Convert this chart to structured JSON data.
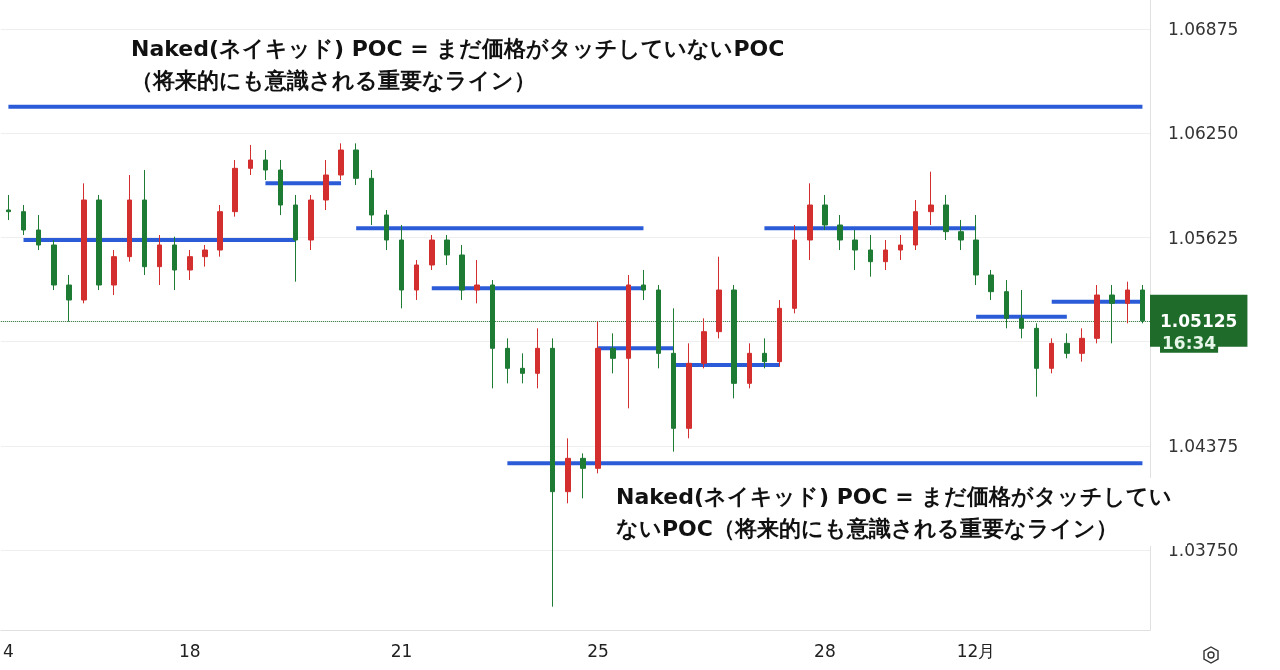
{
  "chart_data": {
    "type": "candlestick",
    "categories": [
      "4",
      null,
      null,
      null,
      null,
      null,
      null,
      null,
      null,
      null,
      null,
      null,
      "18",
      null,
      null,
      null,
      null,
      null,
      null,
      null,
      null,
      null,
      null,
      null,
      null,
      null,
      "21",
      null,
      null,
      null,
      null,
      null,
      null,
      null,
      null,
      null,
      null,
      null,
      null,
      "25",
      null,
      null,
      null,
      null,
      null,
      null,
      null,
      null,
      null,
      null,
      null,
      null,
      null,
      null,
      "28",
      null,
      null,
      null,
      null,
      null,
      null,
      null,
      null,
      null,
      "12月",
      null,
      null,
      null,
      null,
      null,
      null,
      null,
      null,
      null,
      null,
      null
    ],
    "ohlc": [
      [
        1.0579,
        1.0588,
        1.0573,
        1.0578
      ],
      [
        1.0578,
        1.0582,
        1.0564,
        1.0567
      ],
      [
        1.0567,
        1.0576,
        1.0555,
        1.0558
      ],
      [
        1.0558,
        1.0561,
        1.0531,
        1.0534
      ],
      [
        1.0534,
        1.054,
        1.0512,
        1.0525
      ],
      [
        1.0525,
        1.0595,
        1.0523,
        1.0585
      ],
      [
        1.0585,
        1.0588,
        1.0531,
        1.0534
      ],
      [
        1.0534,
        1.0555,
        1.0528,
        1.0551
      ],
      [
        1.0551,
        1.06,
        1.0548,
        1.0585
      ],
      [
        1.0585,
        1.0603,
        1.054,
        1.0545
      ],
      [
        1.0545,
        1.0564,
        1.0534,
        1.0558
      ],
      [
        1.0558,
        1.0563,
        1.0531,
        1.0543
      ],
      [
        1.0543,
        1.0555,
        1.0537,
        1.0551
      ],
      [
        1.0551,
        1.0558,
        1.0545,
        1.0555
      ],
      [
        1.0555,
        1.0582,
        1.0551,
        1.0578
      ],
      [
        1.0578,
        1.0609,
        1.0575,
        1.0604
      ],
      [
        1.0604,
        1.0618,
        1.06,
        1.0609
      ],
      [
        1.0609,
        1.0615,
        1.0597,
        1.0603
      ],
      [
        1.0603,
        1.0609,
        1.0576,
        1.0582
      ],
      [
        1.0582,
        1.0588,
        1.0536,
        1.0561
      ],
      [
        1.0561,
        1.0588,
        1.0555,
        1.0585
      ],
      [
        1.0585,
        1.0609,
        1.0579,
        1.06
      ],
      [
        1.06,
        1.0619,
        1.0597,
        1.0615
      ],
      [
        1.0615,
        1.0619,
        1.0594,
        1.0598
      ],
      [
        1.0598,
        1.0603,
        1.057,
        1.0576
      ],
      [
        1.0576,
        1.0579,
        1.0555,
        1.0561
      ],
      [
        1.0561,
        1.057,
        1.052,
        1.0531
      ],
      [
        1.0531,
        1.0549,
        1.0525,
        1.0546
      ],
      [
        1.0546,
        1.0564,
        1.0543,
        1.0561
      ],
      [
        1.0561,
        1.0564,
        1.0546,
        1.0552
      ],
      [
        1.0552,
        1.0558,
        1.0525,
        1.0531
      ],
      [
        1.0531,
        1.0549,
        1.0523,
        1.0534
      ],
      [
        1.0534,
        1.0537,
        1.0472,
        1.0496
      ],
      [
        1.0496,
        1.0502,
        1.0475,
        1.0484
      ],
      [
        1.0484,
        1.0493,
        1.0475,
        1.0481
      ],
      [
        1.0481,
        1.0508,
        1.0472,
        1.0496
      ],
      [
        1.0496,
        1.0502,
        1.0341,
        1.041
      ],
      [
        1.041,
        1.0442,
        1.0403,
        1.043
      ],
      [
        1.043,
        1.0433,
        1.0406,
        1.0424
      ],
      [
        1.0424,
        1.0512,
        1.0421,
        1.0496
      ],
      [
        1.0496,
        1.0505,
        1.0481,
        1.049
      ],
      [
        1.049,
        1.054,
        1.046,
        1.0534
      ],
      [
        1.0534,
        1.0543,
        1.0525,
        1.0531
      ],
      [
        1.0531,
        1.0534,
        1.0484,
        1.0493
      ],
      [
        1.0493,
        1.052,
        1.0434,
        1.0448
      ],
      [
        1.0448,
        1.0499,
        1.0442,
        1.0487
      ],
      [
        1.0487,
        1.0514,
        1.0484,
        1.0506
      ],
      [
        1.0506,
        1.0551,
        1.0502,
        1.0531
      ],
      [
        1.0531,
        1.0534,
        1.0466,
        1.0475
      ],
      [
        1.0475,
        1.0499,
        1.0472,
        1.0493
      ],
      [
        1.0493,
        1.0502,
        1.0484,
        1.0488
      ],
      [
        1.0488,
        1.0525,
        1.0485,
        1.052
      ],
      [
        1.052,
        1.057,
        1.0517,
        1.0561
      ],
      [
        1.0561,
        1.0595,
        1.0549,
        1.0582
      ],
      [
        1.0582,
        1.0588,
        1.0567,
        1.057
      ],
      [
        1.057,
        1.0576,
        1.0555,
        1.0561
      ],
      [
        1.0561,
        1.0567,
        1.0543,
        1.0555
      ],
      [
        1.0555,
        1.0564,
        1.0539,
        1.0548
      ],
      [
        1.0548,
        1.0561,
        1.0543,
        1.0555
      ],
      [
        1.0555,
        1.0564,
        1.0549,
        1.0558
      ],
      [
        1.0558,
        1.0585,
        1.0555,
        1.0578
      ],
      [
        1.0578,
        1.0602,
        1.057,
        1.0582
      ],
      [
        1.0582,
        1.0588,
        1.0561,
        1.0566
      ],
      [
        1.0566,
        1.0573,
        1.0555,
        1.0561
      ],
      [
        1.0561,
        1.0576,
        1.0534,
        1.054
      ],
      [
        1.054,
        1.0543,
        1.0525,
        1.053
      ],
      [
        1.053,
        1.0537,
        1.0508,
        1.0514
      ],
      [
        1.0514,
        1.0531,
        1.0502,
        1.0508
      ],
      [
        1.0508,
        1.0511,
        1.0467,
        1.0484
      ],
      [
        1.0484,
        1.0502,
        1.0481,
        1.0499
      ],
      [
        1.0499,
        1.0505,
        1.049,
        1.0493
      ],
      [
        1.0493,
        1.0508,
        1.0488,
        1.0502
      ],
      [
        1.0502,
        1.0534,
        1.0499,
        1.0528
      ],
      [
        1.0528,
        1.0534,
        1.0499,
        1.0523
      ],
      [
        1.0523,
        1.0536,
        1.0511,
        1.0531
      ],
      [
        1.0531,
        1.0534,
        1.0511,
        1.05125
      ]
    ],
    "colors": [
      "#1e7b34",
      "#1e7b34",
      "#1e7b34",
      "#1e7b34",
      "#1e7b34",
      "#d32f2f",
      "#1e7b34",
      "#d32f2f",
      "#d32f2f",
      "#1e7b34",
      "#d32f2f",
      "#1e7b34",
      "#d32f2f",
      "#d32f2f",
      "#d32f2f",
      "#d32f2f",
      "#d32f2f",
      "#1e7b34",
      "#1e7b34",
      "#1e7b34",
      "#d32f2f",
      "#d32f2f",
      "#d32f2f",
      "#1e7b34",
      "#1e7b34",
      "#1e7b34",
      "#1e7b34",
      "#d32f2f",
      "#d32f2f",
      "#1e7b34",
      "#1e7b34",
      "#d32f2f",
      "#1e7b34",
      "#1e7b34",
      "#1e7b34",
      "#d32f2f",
      "#1e7b34",
      "#d32f2f",
      "#1e7b34",
      "#d32f2f",
      "#1e7b34",
      "#d32f2f",
      "#1e7b34",
      "#1e7b34",
      "#1e7b34",
      "#d32f2f",
      "#d32f2f",
      "#d32f2f",
      "#1e7b34",
      "#d32f2f",
      "#1e7b34",
      "#d32f2f",
      "#d32f2f",
      "#d32f2f",
      "#1e7b34",
      "#1e7b34",
      "#1e7b34",
      "#1e7b34",
      "#d32f2f",
      "#d32f2f",
      "#d32f2f",
      "#d32f2f",
      "#1e7b34",
      "#1e7b34",
      "#1e7b34",
      "#1e7b34",
      "#1e7b34",
      "#1e7b34",
      "#1e7b34",
      "#d32f2f",
      "#1e7b34",
      "#d32f2f",
      "#d32f2f",
      "#1e7b34",
      "#d32f2f",
      "#1e7b34"
    ],
    "series": [
      {
        "type": "line",
        "color": "#2b5bd7",
        "values": [
          1.0641,
          1.0641,
          1.0641,
          1.0641,
          1.0641,
          1.0641,
          1.0641,
          1.0641,
          1.0641,
          1.0641,
          1.0641,
          1.0641,
          1.0641,
          1.0641,
          1.0641,
          1.0641,
          1.0641,
          1.0641,
          1.0641,
          1.0641,
          1.0641,
          1.0641,
          1.0641,
          1.0641,
          1.0641,
          1.0641,
          1.0641,
          1.0641,
          1.0641,
          1.0641,
          1.0641,
          1.0641,
          1.0641,
          1.0641,
          1.0641,
          1.0641,
          1.0641,
          1.0641,
          1.0641,
          1.0641,
          1.0641,
          1.0641,
          1.0641,
          1.0641,
          1.0641,
          1.0641,
          1.0641,
          1.0641,
          1.0641,
          1.0641,
          1.0641,
          1.0641,
          1.0641,
          1.0641,
          1.0641,
          1.0641,
          1.0641,
          1.0641,
          1.0641,
          1.0641,
          1.0641,
          1.0641,
          1.0641,
          1.0641,
          1.0641,
          1.0641,
          1.0641,
          1.0641,
          1.0641,
          1.0641,
          1.0641,
          1.0641,
          1.0641,
          1.0641,
          1.0641,
          1.0641
        ]
      },
      {
        "type": "line",
        "color": "#2b5bd7",
        "values": [
          null,
          null,
          null,
          null,
          null,
          null,
          null,
          null,
          null,
          null,
          null,
          null,
          null,
          null,
          null,
          null,
          null,
          null,
          null,
          null,
          null,
          null,
          null,
          null,
          null,
          null,
          null,
          null,
          null,
          null,
          null,
          null,
          null,
          1.0427,
          1.0427,
          1.0427,
          1.0427,
          1.0427,
          1.0427,
          1.0427,
          1.0427,
          1.0427,
          1.0427,
          1.0427,
          1.0427,
          1.0427,
          1.0427,
          1.0427,
          1.0427,
          1.0427,
          1.0427,
          1.0427,
          1.0427,
          1.0427,
          1.0427,
          1.0427,
          1.0427,
          1.0427,
          1.0427,
          1.0427,
          1.0427,
          1.0427,
          1.0427,
          1.0427,
          1.0427,
          1.0427,
          1.0427,
          1.0427,
          1.0427,
          1.0427,
          1.0427,
          1.0427,
          1.0427,
          1.0427,
          1.0427,
          1.0427
        ]
      },
      {
        "type": "line",
        "color": "#2b5bd7",
        "values": [
          null,
          1.0561,
          1.0561,
          1.0561,
          1.0561,
          1.0561,
          1.0561,
          1.0561,
          1.0561,
          1.0561,
          1.0561,
          1.0561,
          1.0561,
          1.0561,
          1.0561,
          1.0561,
          1.0561,
          1.0561,
          1.0561,
          1.0561,
          null,
          null,
          null,
          null,
          null,
          null,
          null,
          null,
          null,
          null,
          null,
          null,
          null,
          null,
          null,
          null,
          null,
          null,
          null,
          null,
          null,
          null,
          null,
          null,
          null,
          null,
          null,
          null,
          null,
          null,
          null,
          null,
          null,
          null,
          null,
          null,
          null,
          null,
          null,
          null,
          null,
          null,
          null,
          null,
          null,
          null,
          null,
          null,
          null,
          null,
          null,
          null,
          null,
          null,
          null,
          null
        ]
      },
      {
        "type": "line",
        "color": "#2b5bd7",
        "values": [
          null,
          null,
          null,
          null,
          null,
          null,
          null,
          null,
          null,
          null,
          null,
          null,
          null,
          null,
          null,
          null,
          null,
          1.0595,
          1.0595,
          1.0595,
          1.0595,
          1.0595,
          1.0595,
          null,
          null,
          null,
          null,
          null,
          null,
          null,
          null,
          null,
          null,
          null,
          null,
          null,
          null,
          null,
          null,
          null,
          null,
          null,
          null,
          null,
          null,
          null,
          null,
          null,
          null,
          null,
          null,
          null,
          null,
          null,
          null,
          null,
          null,
          null,
          null,
          null,
          null,
          null,
          null,
          null,
          null,
          null,
          null,
          null,
          null,
          null,
          null,
          null,
          null,
          null,
          null,
          null
        ]
      },
      {
        "type": "line",
        "color": "#2b5bd7",
        "values": [
          null,
          null,
          null,
          null,
          null,
          null,
          null,
          null,
          null,
          null,
          null,
          null,
          null,
          null,
          null,
          null,
          null,
          null,
          null,
          null,
          null,
          null,
          null,
          1.0568,
          1.0568,
          1.0568,
          1.0568,
          1.0568,
          1.0568,
          1.0568,
          1.0568,
          1.0568,
          1.0568,
          1.0568,
          1.0568,
          1.0568,
          1.0568,
          1.0568,
          1.0568,
          1.0568,
          1.0568,
          1.0568,
          1.0568,
          null,
          null,
          null,
          null,
          null,
          null,
          null,
          null,
          null,
          null,
          null,
          null,
          null,
          null,
          null,
          null,
          null,
          null,
          null,
          null,
          null,
          null,
          null,
          null,
          null,
          null,
          null,
          null,
          null,
          null,
          null,
          null,
          null
        ]
      },
      {
        "type": "line",
        "color": "#2b5bd7",
        "values": [
          null,
          null,
          null,
          null,
          null,
          null,
          null,
          null,
          null,
          null,
          null,
          null,
          null,
          null,
          null,
          null,
          null,
          null,
          null,
          null,
          null,
          null,
          null,
          null,
          null,
          null,
          null,
          null,
          1.0532,
          1.0532,
          1.0532,
          1.0532,
          1.0532,
          1.0532,
          1.0532,
          1.0532,
          1.0532,
          1.0532,
          1.0532,
          1.0532,
          1.0532,
          1.0532,
          1.0532,
          null,
          null,
          null,
          null,
          null,
          null,
          null,
          null,
          null,
          null,
          null,
          null,
          null,
          null,
          null,
          null,
          null,
          null,
          null,
          null,
          null,
          null,
          null,
          null,
          null,
          null,
          null,
          null,
          null,
          null,
          null,
          null,
          null
        ]
      },
      {
        "type": "line",
        "color": "#2b5bd7",
        "values": [
          null,
          null,
          null,
          null,
          null,
          null,
          null,
          null,
          null,
          null,
          null,
          null,
          null,
          null,
          null,
          null,
          null,
          null,
          null,
          null,
          null,
          null,
          null,
          null,
          null,
          null,
          null,
          null,
          null,
          null,
          null,
          null,
          null,
          null,
          null,
          null,
          null,
          null,
          null,
          1.0496,
          1.0496,
          1.0496,
          1.0496,
          1.0496,
          1.0496,
          null,
          null,
          null,
          null,
          null,
          null,
          null,
          null,
          null,
          null,
          null,
          null,
          null,
          null,
          null,
          null,
          null,
          null,
          null,
          null,
          null,
          null,
          null,
          null,
          null,
          null,
          null,
          null,
          null,
          null,
          null
        ]
      },
      {
        "type": "line",
        "color": "#2b5bd7",
        "values": [
          null,
          null,
          null,
          null,
          null,
          null,
          null,
          null,
          null,
          null,
          null,
          null,
          null,
          null,
          null,
          null,
          null,
          null,
          null,
          null,
          null,
          null,
          null,
          null,
          null,
          null,
          null,
          null,
          null,
          null,
          null,
          null,
          null,
          null,
          null,
          null,
          null,
          null,
          null,
          null,
          null,
          null,
          null,
          null,
          1.0486,
          1.0486,
          1.0486,
          1.0486,
          1.0486,
          1.0486,
          1.0486,
          1.0486,
          null,
          null,
          null,
          null,
          null,
          null,
          null,
          null,
          null,
          null,
          null,
          null,
          null,
          null,
          null,
          null,
          null,
          null,
          null,
          null,
          null,
          null,
          null,
          null
        ]
      },
      {
        "type": "line",
        "color": "#2b5bd7",
        "values": [
          null,
          null,
          null,
          null,
          null,
          null,
          null,
          null,
          null,
          null,
          null,
          null,
          null,
          null,
          null,
          null,
          null,
          null,
          null,
          null,
          null,
          null,
          null,
          null,
          null,
          null,
          null,
          null,
          null,
          null,
          null,
          null,
          null,
          null,
          null,
          null,
          null,
          null,
          null,
          null,
          null,
          null,
          null,
          null,
          null,
          null,
          null,
          null,
          null,
          null,
          1.0568,
          1.0568,
          1.0568,
          1.0568,
          1.0568,
          1.0568,
          1.0568,
          1.0568,
          1.0568,
          1.0568,
          1.0568,
          1.0568,
          1.0568,
          1.0568,
          1.0568,
          null,
          null,
          null,
          null,
          null,
          null,
          null,
          null,
          null,
          null,
          null
        ]
      },
      {
        "type": "line",
        "color": "#2b5bd7",
        "values": [
          null,
          null,
          null,
          null,
          null,
          null,
          null,
          null,
          null,
          null,
          null,
          null,
          null,
          null,
          null,
          null,
          null,
          null,
          null,
          null,
          null,
          null,
          null,
          null,
          null,
          null,
          null,
          null,
          null,
          null,
          null,
          null,
          null,
          null,
          null,
          null,
          null,
          null,
          null,
          null,
          null,
          null,
          null,
          null,
          null,
          null,
          null,
          null,
          null,
          null,
          null,
          null,
          null,
          null,
          null,
          null,
          null,
          null,
          null,
          null,
          null,
          null,
          null,
          null,
          1.0515,
          1.0515,
          1.0515,
          1.0515,
          1.0515,
          1.0515,
          1.0515,
          null,
          null,
          null,
          null,
          null
        ]
      },
      {
        "type": "line",
        "color": "#2b5bd7",
        "values": [
          null,
          null,
          null,
          null,
          null,
          null,
          null,
          null,
          null,
          null,
          null,
          null,
          null,
          null,
          null,
          null,
          null,
          null,
          null,
          null,
          null,
          null,
          null,
          null,
          null,
          null,
          null,
          null,
          null,
          null,
          null,
          null,
          null,
          null,
          null,
          null,
          null,
          null,
          null,
          null,
          null,
          null,
          null,
          null,
          null,
          null,
          null,
          null,
          null,
          null,
          null,
          null,
          null,
          null,
          null,
          null,
          null,
          null,
          null,
          null,
          null,
          null,
          null,
          null,
          null,
          null,
          null,
          null,
          null,
          1.0524,
          1.0524,
          1.0524,
          1.0524,
          1.0524,
          1.0524,
          1.0524
        ]
      }
    ],
    "marker": "none",
    "line_style": "solid",
    "ylim": [
      1.0327,
      1.0705
    ],
    "yticks": [
      {
        "value": 1.0375,
        "label": "1.03750"
      },
      1.04375,
      {
        "value": 1.05,
        "label": null
      },
      1.05625,
      {
        "value": 1.0625,
        "label": "1.06250"
      },
      1.06875
    ],
    "grid": "y",
    "ref_lines": [
      {
        "axis": "y",
        "value": 1.05125,
        "label": "1.05125",
        "color": "#1e6b2a",
        "line_style": "dotted"
      }
    ],
    "annotations": [
      "Naked(ネイキッド) POC = まだ価格がタッチしていないPOC（将来的にも意識される重要なライン）",
      "Naked(ネイキッド) POC = まだ価格がタッチしていないPOC（将来的にも意識される重要なライン）",
      "16:34"
    ]
  }
}
